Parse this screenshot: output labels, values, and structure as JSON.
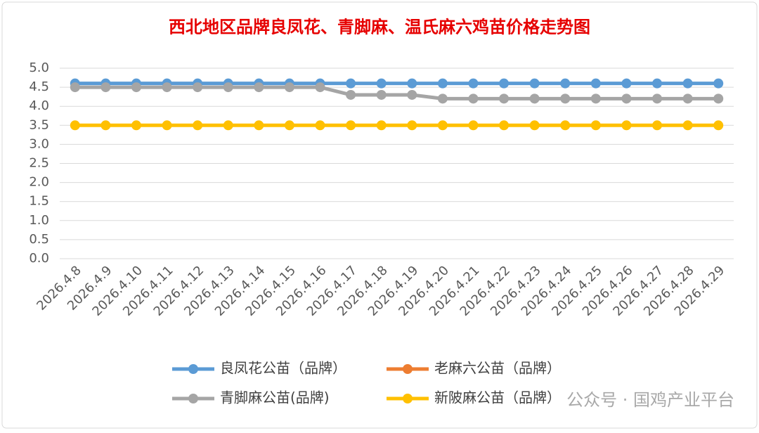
{
  "chart_data": {
    "type": "line",
    "title": "西北地区品牌良凤花、青脚麻、温氏麻六鸡苗价格走势图",
    "categories": [
      "2026.4.8",
      "2026.4.9",
      "2026.4.10",
      "2026.4.11",
      "2026.4.12",
      "2026.4.13",
      "2026.4.14",
      "2026.4.15",
      "2026.4.16",
      "2026.4.17",
      "2026.4.18",
      "2026.4.19",
      "2026.4.20",
      "2026.4.21",
      "2026.4.22",
      "2026.4.23",
      "2026.4.24",
      "2026.4.25",
      "2026.4.26",
      "2026.4.27",
      "2026.4.28",
      "2026.4.29"
    ],
    "series": [
      {
        "name": "良凤花公苗（品牌）",
        "color": "#5b9bd5",
        "values": [
          4.6,
          4.6,
          4.6,
          4.6,
          4.6,
          4.6,
          4.6,
          4.6,
          4.6,
          4.6,
          4.6,
          4.6,
          4.6,
          4.6,
          4.6,
          4.6,
          4.6,
          4.6,
          4.6,
          4.6,
          4.6,
          4.6
        ]
      },
      {
        "name": "老麻六公苗（品牌）",
        "color": "#ed7d31",
        "values": [
          null,
          null,
          null,
          null,
          null,
          null,
          null,
          null,
          null,
          null,
          null,
          null,
          null,
          null,
          null,
          null,
          null,
          null,
          null,
          null,
          null,
          null
        ]
      },
      {
        "name": "青脚麻公苗(品牌)",
        "color": "#a5a5a5",
        "values": [
          4.5,
          4.5,
          4.5,
          4.5,
          4.5,
          4.5,
          4.5,
          4.5,
          4.5,
          4.3,
          4.3,
          4.3,
          4.2,
          4.2,
          4.2,
          4.2,
          4.2,
          4.2,
          4.2,
          4.2,
          4.2,
          4.2
        ]
      },
      {
        "name": "新陂麻公苗（品牌）",
        "color": "#ffc000",
        "values": [
          3.5,
          3.5,
          3.5,
          3.5,
          3.5,
          3.5,
          3.5,
          3.5,
          3.5,
          3.5,
          3.5,
          3.5,
          3.5,
          3.5,
          3.5,
          3.5,
          3.5,
          3.5,
          3.5,
          3.5,
          3.5,
          3.5
        ]
      }
    ],
    "ylim": [
      0,
      5
    ],
    "yticks": [
      {
        "value": 0,
        "label": "0.0"
      },
      {
        "value": 0.5,
        "label": "0.5"
      },
      {
        "value": 1,
        "label": "1.0"
      },
      {
        "value": 1.5,
        "label": "1.5"
      },
      {
        "value": 2,
        "label": "2.0"
      },
      {
        "value": 2.5,
        "label": "2.5"
      },
      {
        "value": 3,
        "label": "3.0"
      },
      {
        "value": 3.5,
        "label": "3.5"
      },
      {
        "value": 4,
        "label": "4.0"
      },
      {
        "value": 4.5,
        "label": "4.5"
      },
      {
        "value": 5,
        "label": "5.0"
      }
    ],
    "grid": true,
    "legend": "bottom",
    "watermark": "公众号 · 国鸡产业平台"
  }
}
